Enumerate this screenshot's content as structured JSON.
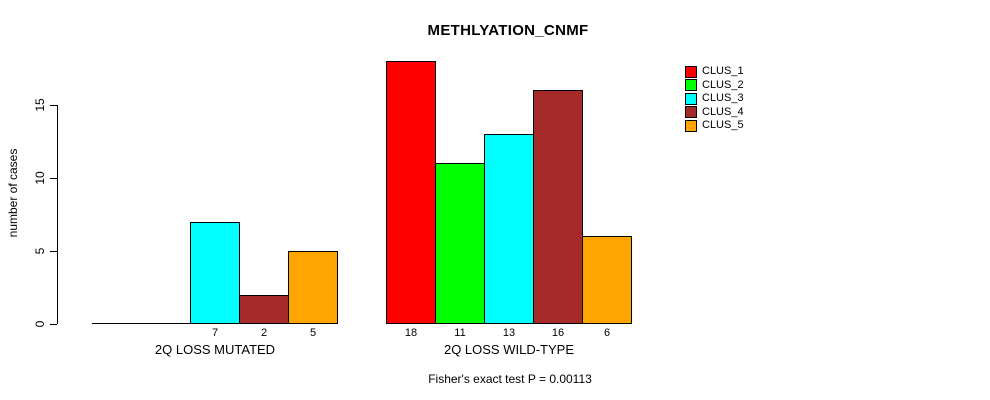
{
  "chart_data": {
    "type": "bar",
    "title": "METHLYATION_CNMF",
    "ylabel": "number of cases",
    "annotation": "Fisher's exact test P = 0.00113",
    "categories": [
      "2Q LOSS MUTATED",
      "2Q LOSS WILD-TYPE"
    ],
    "series": [
      {
        "name": "CLUS_1",
        "color": "#FF0000",
        "values": [
          0,
          18
        ]
      },
      {
        "name": "CLUS_2",
        "color": "#00FF00",
        "values": [
          0,
          11
        ]
      },
      {
        "name": "CLUS_3",
        "color": "#00FFFF",
        "values": [
          7,
          13
        ]
      },
      {
        "name": "CLUS_4",
        "color": "#A52A2A",
        "values": [
          2,
          16
        ]
      },
      {
        "name": "CLUS_5",
        "color": "#FFA500",
        "values": [
          5,
          6
        ]
      }
    ],
    "yticks": [
      0,
      5,
      10,
      15
    ],
    "ylim": [
      0,
      18
    ],
    "grid": false,
    "legend_position": "right",
    "bar_border_color": "#000000",
    "axis_color": "#000000"
  }
}
